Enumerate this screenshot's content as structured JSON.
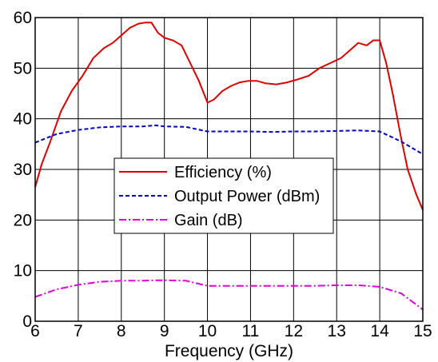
{
  "chart_data": {
    "type": "line",
    "xlabel": "Frequency (GHz)",
    "ylabel": "",
    "xlim": [
      6,
      15
    ],
    "ylim": [
      0,
      60
    ],
    "xticks": [
      "6",
      "7",
      "8",
      "9",
      "10",
      "11",
      "12",
      "13",
      "14",
      "15"
    ],
    "yticks": [
      "0",
      "10",
      "20",
      "30",
      "40",
      "50",
      "60"
    ],
    "grid": true,
    "legend_position": "center-left",
    "series": [
      {
        "name": "Efficiency (%)",
        "color": "#e00000",
        "style": "solid",
        "x": [
          6,
          6.15,
          6.35,
          6.6,
          6.85,
          7.1,
          7.35,
          7.6,
          7.8,
          8.0,
          8.2,
          8.4,
          8.55,
          8.7,
          8.85,
          9.0,
          9.2,
          9.4,
          9.6,
          9.8,
          10.0,
          10.15,
          10.35,
          10.55,
          10.75,
          10.95,
          11.15,
          11.35,
          11.6,
          11.85,
          12.1,
          12.35,
          12.6,
          12.85,
          13.1,
          13.3,
          13.5,
          13.7,
          13.85,
          14.0,
          14.15,
          14.3,
          14.5,
          14.65,
          14.85,
          15.0
        ],
        "values": [
          26.5,
          31,
          35.5,
          41.5,
          45.5,
          48.5,
          52,
          54,
          55,
          56.5,
          58,
          58.8,
          59,
          59,
          57,
          56,
          55.5,
          54.5,
          51,
          47.5,
          43.2,
          43.8,
          45.5,
          46.5,
          47.2,
          47.5,
          47.5,
          47,
          46.8,
          47.2,
          47.8,
          48.5,
          50,
          51,
          52,
          53.5,
          55,
          54.5,
          55.5,
          55.5,
          51,
          45,
          36,
          30,
          25,
          22
        ]
      },
      {
        "name": "Output Power (dBm)",
        "color": "#0000cc",
        "style": "dashed",
        "x": [
          6,
          6.5,
          7,
          7.5,
          8,
          8.5,
          8.8,
          9.0,
          9.5,
          10,
          10.5,
          11,
          11.5,
          12,
          12.5,
          13,
          13.5,
          14,
          14.5,
          15
        ],
        "values": [
          35.3,
          37,
          37.8,
          38.3,
          38.5,
          38.5,
          38.7,
          38.5,
          38.4,
          37.5,
          37.5,
          37.5,
          37.4,
          37.5,
          37.5,
          37.6,
          37.7,
          37.5,
          35.5,
          33
        ]
      },
      {
        "name": "Gain (dB)",
        "color": "#e000e0",
        "style": "dashdot",
        "x": [
          6,
          6.5,
          7,
          7.5,
          8,
          8.5,
          8.8,
          9.0,
          9.5,
          10,
          10.5,
          11,
          11.5,
          12,
          12.5,
          13,
          13.5,
          14,
          14.5,
          15
        ],
        "values": [
          4.8,
          6.3,
          7.2,
          7.8,
          8,
          8,
          8.1,
          8.1,
          8,
          7,
          7,
          7,
          7,
          7,
          7,
          7.1,
          7.1,
          6.8,
          5.5,
          2.3
        ]
      }
    ]
  }
}
